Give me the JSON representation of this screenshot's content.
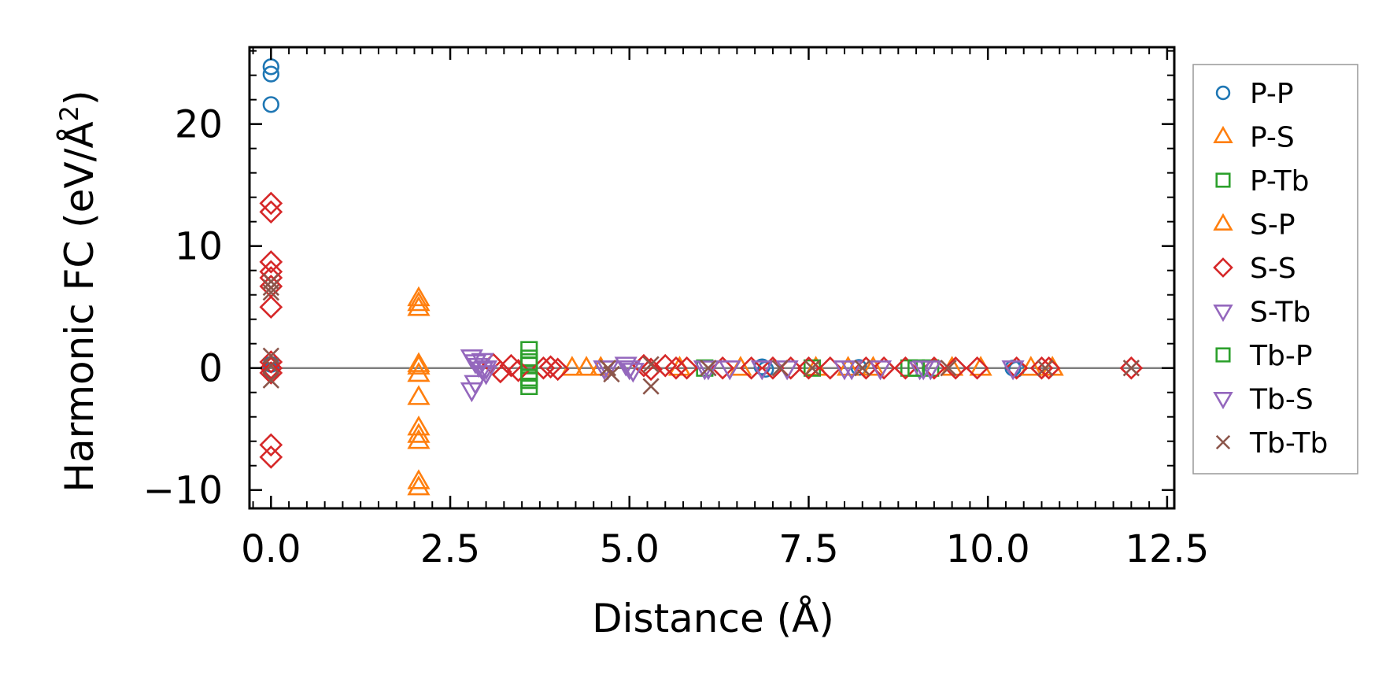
{
  "chart_data": {
    "type": "scatter",
    "title": "",
    "xlabel": "Distance (Å)",
    "ylabel": "Harmonic FC (eV/Å²)",
    "ylabel_parts": {
      "main": "Harmonic FC (eV/Å",
      "sup": "2",
      "close": ")"
    },
    "xlim": [
      -0.3,
      12.6
    ],
    "ylim": [
      -11.5,
      26.3
    ],
    "xticks": [
      0.0,
      2.5,
      5.0,
      7.5,
      10.0,
      12.5
    ],
    "xtick_labels": [
      "0.0",
      "2.5",
      "5.0",
      "7.5",
      "10.0",
      "12.5"
    ],
    "yticks": [
      -10,
      0,
      10,
      20
    ],
    "ytick_labels": [
      "−10",
      "0",
      "10",
      "20"
    ],
    "zero_line": true,
    "grid": false,
    "legend_position": "right",
    "series": [
      {
        "name": "P-P",
        "marker": "circle",
        "color": "#1f77b4",
        "points": [
          [
            0,
            24.7
          ],
          [
            0,
            24.1
          ],
          [
            0,
            21.6
          ],
          [
            0,
            0.3
          ],
          [
            0,
            -0.2
          ],
          [
            6.85,
            0.1
          ],
          [
            6.9,
            -0.1
          ],
          [
            8.2,
            0.05
          ],
          [
            10.35,
            0
          ],
          [
            10.4,
            -0.1
          ]
        ]
      },
      {
        "name": "P-S",
        "marker": "triangle-up",
        "color": "#ff7f0e",
        "points": [
          [
            2.06,
            5.7
          ],
          [
            2.06,
            5.3
          ],
          [
            2.06,
            4.9
          ],
          [
            2.06,
            0.3
          ],
          [
            2.06,
            -0.5
          ],
          [
            2.06,
            -2.4
          ],
          [
            2.06,
            -4.9
          ],
          [
            2.06,
            -5.5
          ],
          [
            2.06,
            -6.0
          ],
          [
            2.06,
            -9.3
          ],
          [
            2.06,
            -9.8
          ],
          [
            4.2,
            0
          ],
          [
            4.4,
            0
          ],
          [
            7.6,
            0
          ],
          [
            8.4,
            0
          ],
          [
            9.9,
            0
          ],
          [
            10.9,
            0
          ]
        ]
      },
      {
        "name": "P-Tb",
        "marker": "square",
        "color": "#2ca02c",
        "points": [
          [
            3.6,
            1.5
          ],
          [
            3.6,
            0.8
          ],
          [
            3.6,
            0.2
          ],
          [
            3.6,
            -0.4
          ],
          [
            3.6,
            -1.0
          ],
          [
            3.6,
            -1.5
          ],
          [
            6.05,
            0
          ],
          [
            7.55,
            0
          ],
          [
            8.9,
            0
          ],
          [
            9.2,
            0
          ]
        ]
      },
      {
        "name": "S-P",
        "marker": "triangle-up",
        "color": "#ff7f0e",
        "points": [
          [
            2.06,
            0.1
          ],
          [
            4.6,
            0
          ],
          [
            5.7,
            0
          ],
          [
            6.55,
            0
          ],
          [
            8.05,
            0
          ],
          [
            9.5,
            0
          ],
          [
            10.6,
            0
          ]
        ]
      },
      {
        "name": "S-S",
        "marker": "diamond",
        "color": "#d62728",
        "points": [
          [
            0,
            13.5
          ],
          [
            0,
            12.8
          ],
          [
            0,
            8.7
          ],
          [
            0,
            7.9
          ],
          [
            0,
            7.4
          ],
          [
            0,
            6.7
          ],
          [
            0,
            5.0
          ],
          [
            0,
            0.5
          ],
          [
            0,
            0
          ],
          [
            0,
            -0.4
          ],
          [
            0,
            -6.3
          ],
          [
            0,
            -7.3
          ],
          [
            3.1,
            0.3
          ],
          [
            3.2,
            -0.3
          ],
          [
            3.35,
            0.2
          ],
          [
            3.45,
            -0.2
          ],
          [
            3.8,
            0
          ],
          [
            3.9,
            0.1
          ],
          [
            4.0,
            -0.1
          ],
          [
            5.2,
            0.2
          ],
          [
            5.3,
            -0.1
          ],
          [
            5.5,
            0.2
          ],
          [
            5.65,
            0
          ],
          [
            5.8,
            0
          ],
          [
            6.3,
            0
          ],
          [
            6.7,
            0
          ],
          [
            7.0,
            0
          ],
          [
            7.25,
            0
          ],
          [
            7.5,
            0
          ],
          [
            7.8,
            0
          ],
          [
            8.3,
            0
          ],
          [
            8.55,
            0
          ],
          [
            8.85,
            0
          ],
          [
            9.25,
            0
          ],
          [
            9.55,
            0
          ],
          [
            9.85,
            0
          ],
          [
            10.4,
            0
          ],
          [
            10.75,
            0
          ],
          [
            10.85,
            0
          ],
          [
            12.0,
            0
          ]
        ]
      },
      {
        "name": "S-Tb",
        "marker": "triangle-down",
        "color": "#9467bd",
        "points": [
          [
            2.8,
            0.9
          ],
          [
            2.85,
            0.5
          ],
          [
            2.9,
            0.2
          ],
          [
            2.95,
            -0.1
          ],
          [
            3.0,
            -0.4
          ],
          [
            2.85,
            -1.2
          ],
          [
            2.8,
            -1.8
          ],
          [
            4.65,
            0
          ],
          [
            4.95,
            0.3
          ],
          [
            5.05,
            -0.2
          ],
          [
            6.05,
            0
          ],
          [
            6.4,
            0
          ],
          [
            6.85,
            0
          ],
          [
            7.2,
            0
          ],
          [
            8.0,
            0
          ],
          [
            8.5,
            0
          ],
          [
            9.05,
            0
          ],
          [
            9.2,
            0
          ],
          [
            10.35,
            0
          ]
        ]
      },
      {
        "name": "Tb-P",
        "marker": "square",
        "color": "#2ca02c",
        "points": [
          [
            3.6,
            0.5
          ],
          [
            3.6,
            -0.8
          ],
          [
            9.0,
            0
          ]
        ]
      },
      {
        "name": "Tb-S",
        "marker": "triangle-down",
        "color": "#9467bd",
        "points": [
          [
            2.95,
            0.6
          ],
          [
            3.0,
            0
          ],
          [
            4.7,
            0
          ],
          [
            5.0,
            0
          ],
          [
            6.1,
            0
          ],
          [
            8.1,
            0
          ],
          [
            9.1,
            0
          ]
        ]
      },
      {
        "name": "Tb-Tb",
        "marker": "x",
        "color": "#8c564b",
        "points": [
          [
            0,
            7.1
          ],
          [
            0,
            6.6
          ],
          [
            0,
            6.2
          ],
          [
            0,
            1.0
          ],
          [
            0,
            0.2
          ],
          [
            0,
            -1.0
          ],
          [
            4.7,
            0
          ],
          [
            4.75,
            -0.5
          ],
          [
            5.3,
            0.3
          ],
          [
            5.3,
            -1.5
          ],
          [
            6.1,
            0
          ],
          [
            7.1,
            0
          ],
          [
            7.55,
            0
          ],
          [
            8.25,
            0
          ],
          [
            9.45,
            0
          ],
          [
            10.8,
            0
          ],
          [
            12.0,
            0
          ]
        ]
      }
    ],
    "legend": [
      {
        "name": "P-P",
        "marker": "circle",
        "color": "#1f77b4"
      },
      {
        "name": "P-S",
        "marker": "triangle-up",
        "color": "#ff7f0e"
      },
      {
        "name": "P-Tb",
        "marker": "square",
        "color": "#2ca02c"
      },
      {
        "name": "S-P",
        "marker": "triangle-up",
        "color": "#ff7f0e"
      },
      {
        "name": "S-S",
        "marker": "diamond",
        "color": "#d62728"
      },
      {
        "name": "S-Tb",
        "marker": "triangle-down",
        "color": "#9467bd"
      },
      {
        "name": "Tb-P",
        "marker": "square",
        "color": "#2ca02c"
      },
      {
        "name": "Tb-S",
        "marker": "triangle-down",
        "color": "#9467bd"
      },
      {
        "name": "Tb-Tb",
        "marker": "x",
        "color": "#8c564b"
      }
    ]
  }
}
